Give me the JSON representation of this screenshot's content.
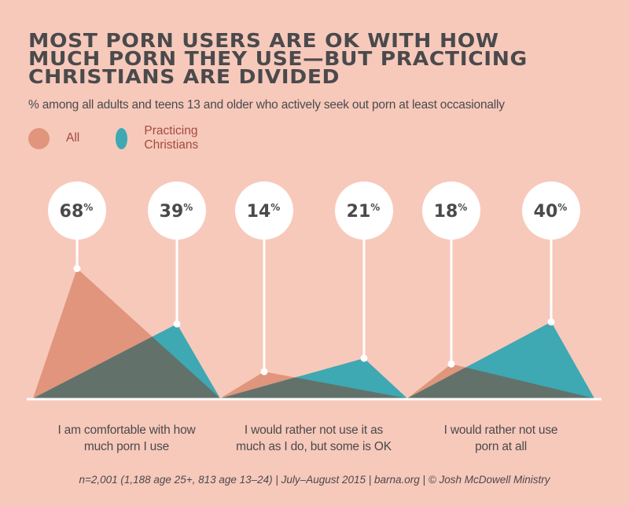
{
  "title": "Most porn users are OK with how much porn they use—but practicing Christians are divided",
  "title_lines": [
    "MOST PORN USERS ARE OK WITH HOW",
    "MUCH PORN THEY USE—BUT PRACTICING",
    "CHRISTIANS ARE DIVIDED"
  ],
  "subtitle": "% among all adults and teens 13 and older who actively seek out porn at least occasionally",
  "footer": "n=2,001 (1,188 age 25+, 813 age 13–24)  |  July–August 2015  |  barna.org  |  © Josh McDowell Ministry",
  "colors": {
    "background": "#f7c9bb",
    "all": "#e0957c",
    "practicing_christians": "#3ea8b3",
    "overlap": "#62726a",
    "text_dark": "#4a4a4c",
    "legend_text": "#a24b3e",
    "white": "#ffffff"
  },
  "chart_data": {
    "type": "area",
    "title": "Most porn users are OK with how much porn they use—but practicing Christians are divided",
    "subtitle": "% among all adults and teens 13 and older who actively seek out porn at least occasionally",
    "categories": [
      "I am comfortable with how much porn I use",
      "I would rather not use it as much as I do, but some is OK",
      "I would rather not use porn at all"
    ],
    "category_lines": [
      [
        "I am comfortable with how",
        "much porn I use"
      ],
      [
        "I would rather not use it as",
        "much as I do, but some is OK"
      ],
      [
        "I would rather not use",
        "porn at all"
      ]
    ],
    "series": [
      {
        "name": "All",
        "values": [
          68,
          14,
          18
        ],
        "color": "#e0957c"
      },
      {
        "name": "Practicing Christians",
        "values": [
          39,
          21,
          40
        ],
        "color": "#3ea8b3"
      }
    ],
    "unit": "%",
    "ylim": [
      0,
      100
    ],
    "legend": "top-left",
    "grid": false
  }
}
